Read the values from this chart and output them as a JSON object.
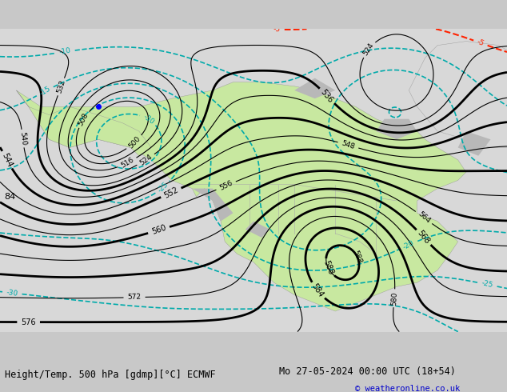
{
  "title_left": "Height/Temp. 500 hPa [gdmp][°C] ECMWF",
  "title_right": "Mo 27-05-2024 00:00 UTC (18+54)",
  "copyright": "© weatheronline.co.uk",
  "bg_color": "#c8c8c8",
  "land_color": "#e8e8e8",
  "green_color": "#c8e8a0",
  "figsize": [
    6.34,
    4.9
  ],
  "dpi": 100,
  "z500_color": "#000000",
  "temp_warm_color": "#ff8800",
  "temp_cold_color": "#00aaaa",
  "temp_red_color": "#ff2200"
}
